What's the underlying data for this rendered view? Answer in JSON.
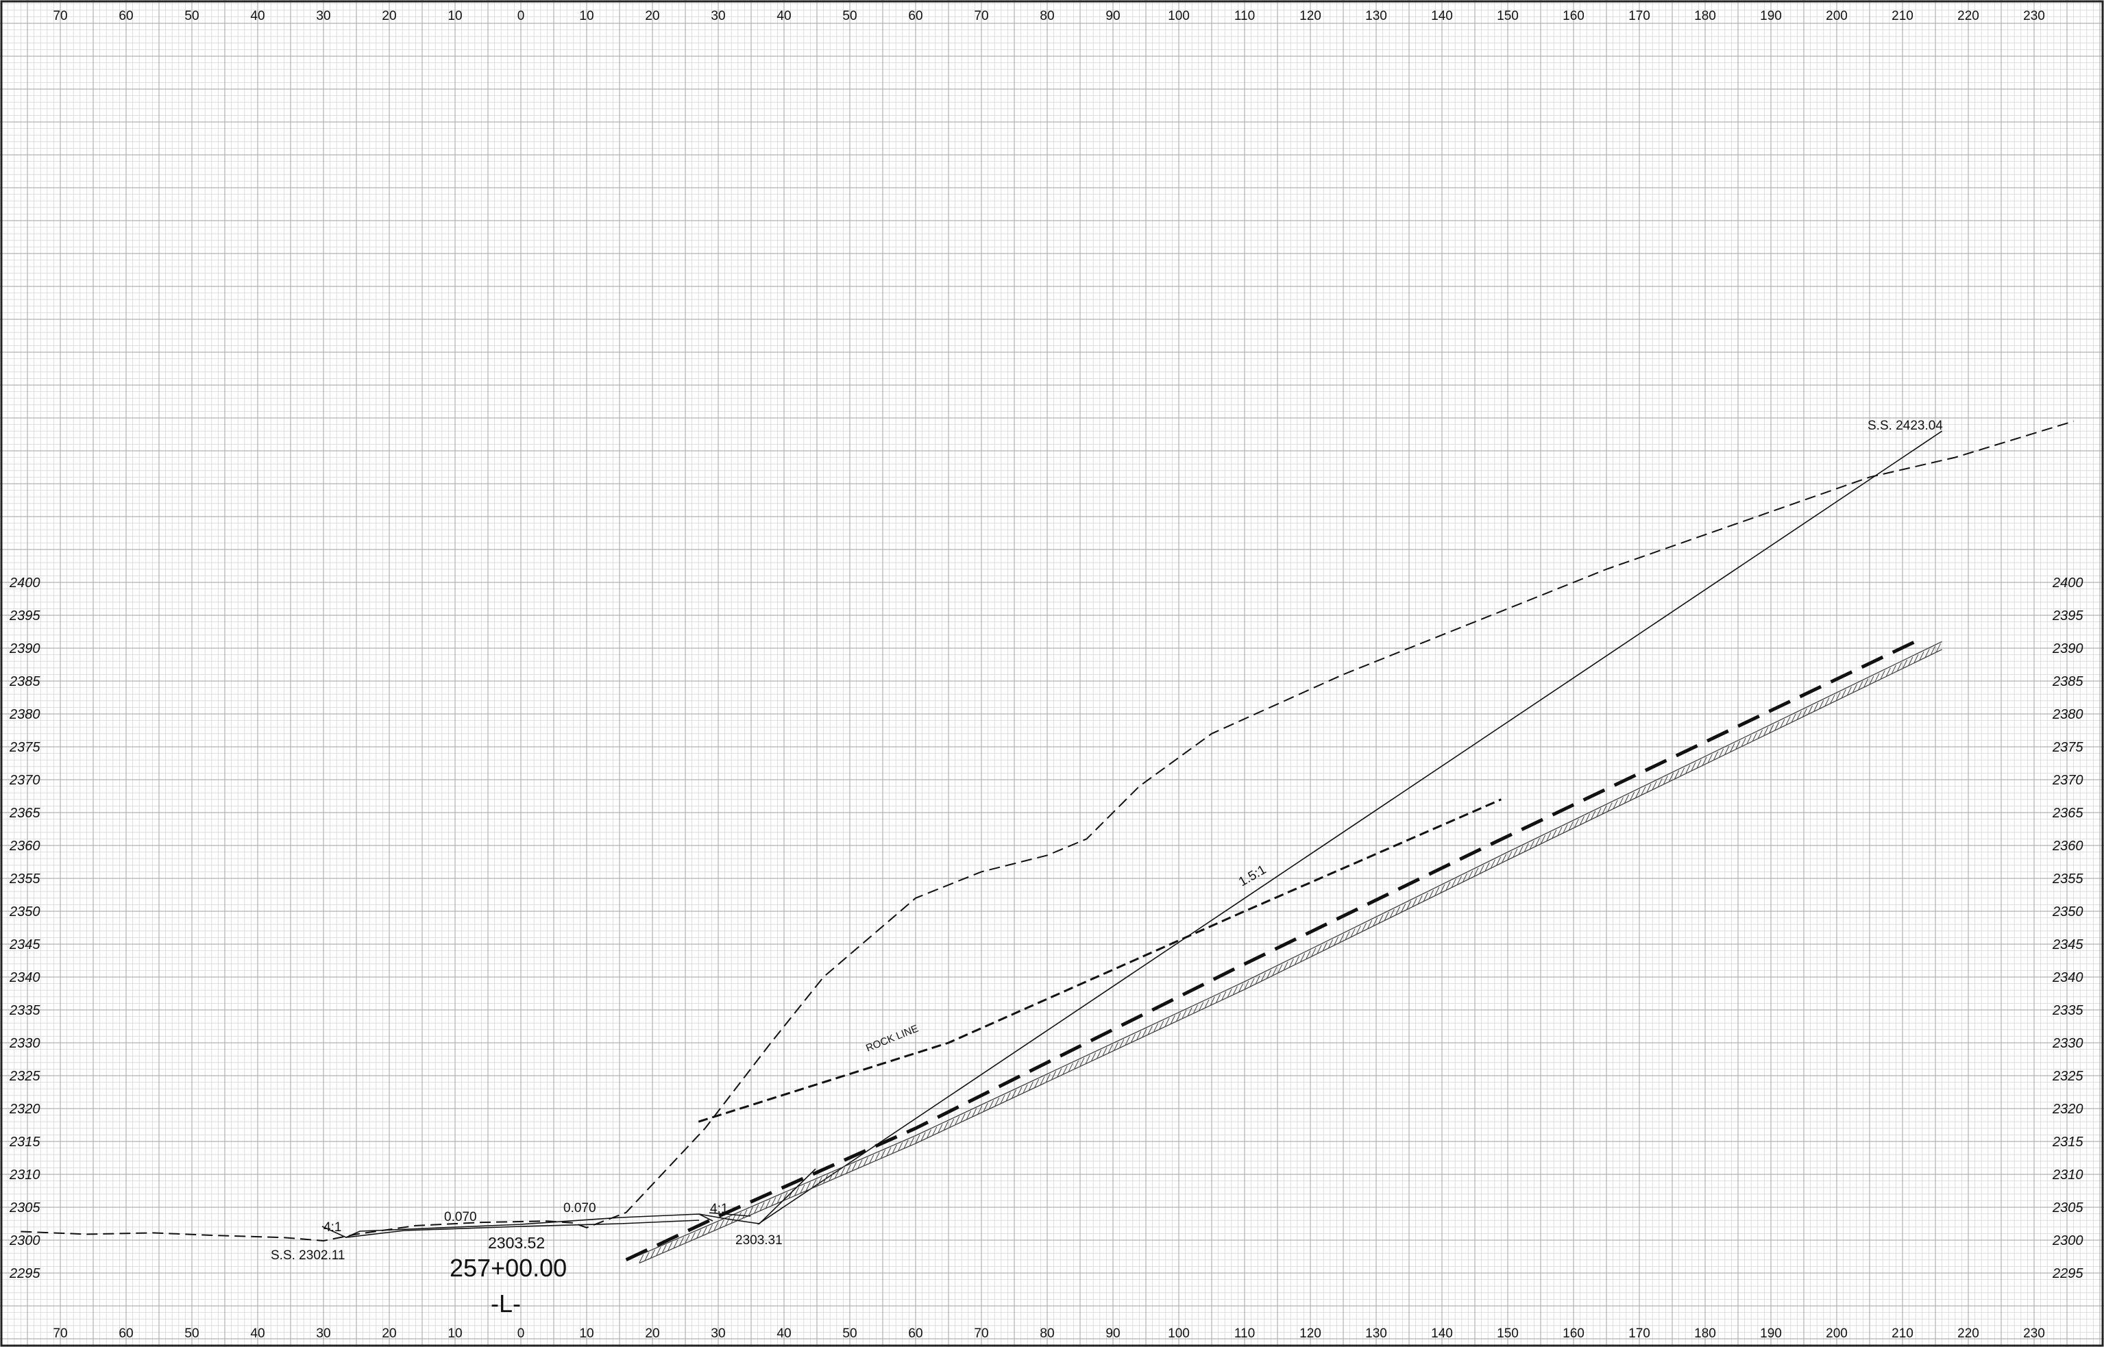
{
  "drawing": {
    "x_ticks": [
      "70",
      "60",
      "50",
      "40",
      "30",
      "20",
      "10",
      "0",
      "10",
      "20",
      "30",
      "40",
      "50",
      "60",
      "70",
      "80",
      "90",
      "100",
      "110",
      "120",
      "130",
      "140",
      "150",
      "160",
      "170",
      "180",
      "190",
      "200",
      "210",
      "220",
      "230"
    ],
    "y_ticks": [
      "2400",
      "2395",
      "2390",
      "2385",
      "2380",
      "2375",
      "2370",
      "2365",
      "2360",
      "2355",
      "2350",
      "2345",
      "2340",
      "2335",
      "2330",
      "2325",
      "2320",
      "2315",
      "2310",
      "2305",
      "2300",
      "2295"
    ],
    "labels": {
      "ss_right": "S.S. 2423.04",
      "ss_left": "S.S. 2302.11",
      "rock_line": "ROCK LINE",
      "slope_15": "1.5:1",
      "slope_4_left": "4:1",
      "slope_4_right": "4:1",
      "cross_slope_left": "0.070",
      "cross_slope_right": "0.070",
      "ditch_elev": "2303.31",
      "grade_elev": "2303.52",
      "station": "257+00.00",
      "centerline": "-L-"
    },
    "series": {
      "existing_ground": [
        [
          -76,
          2301.3
        ],
        [
          -66,
          2300.9
        ],
        [
          -56,
          2301.1
        ],
        [
          -46,
          2300.7
        ],
        [
          -36,
          2300.4
        ],
        [
          -30,
          2299.9
        ],
        [
          -25,
          2300.9
        ],
        [
          -16,
          2302.2
        ],
        [
          -6,
          2302.7
        ],
        [
          4,
          2302.9
        ],
        [
          8,
          2302.6
        ],
        [
          10,
          2301.9
        ],
        [
          16,
          2304.2
        ],
        [
          28,
          2317
        ],
        [
          38,
          2330
        ],
        [
          46,
          2340
        ],
        [
          60,
          2352
        ],
        [
          70,
          2356
        ],
        [
          80,
          2358.5
        ],
        [
          86,
          2361
        ],
        [
          94,
          2369
        ],
        [
          105,
          2377
        ],
        [
          125,
          2386
        ],
        [
          165,
          2402
        ],
        [
          185,
          2409
        ],
        [
          205,
          2416
        ],
        [
          218,
          2419
        ],
        [
          236,
          2424.5
        ]
      ],
      "rock_line": [
        [
          27,
          2318
        ],
        [
          65,
          2330
        ],
        [
          110,
          2350
        ],
        [
          149,
          2367
        ]
      ],
      "design_1_5": [
        [
          36,
          2302.4
        ],
        [
          216,
          2423
        ]
      ],
      "bold_dash": [
        [
          16,
          2297
        ],
        [
          30,
          2303.6
        ],
        [
          60,
          2317
        ],
        [
          108,
          2341
        ],
        [
          146,
          2359.5
        ],
        [
          213,
          2391.5
        ]
      ],
      "hatch_band": [
        [
          18,
          2297.7
        ],
        [
          60,
          2315.9
        ],
        [
          110,
          2339.3
        ],
        [
          150,
          2359
        ],
        [
          216,
          2391
        ]
      ]
    }
  }
}
